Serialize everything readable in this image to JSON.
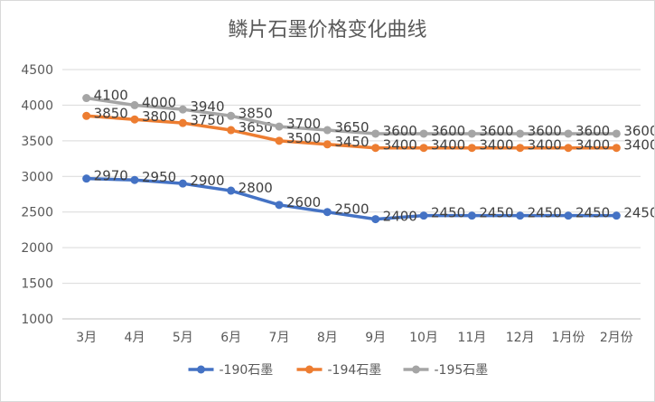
{
  "chart_data": {
    "type": "line",
    "title": "鳞片石墨价格变化曲线",
    "categories": [
      "3月",
      "4月",
      "5月",
      "6月",
      "7月",
      "8月",
      "9月",
      "10月",
      "11月",
      "12月",
      "1月份",
      "2月份"
    ],
    "ylim": [
      1000,
      4500
    ],
    "yticks": [
      1000,
      1500,
      2000,
      2500,
      3000,
      3500,
      4000,
      4500
    ],
    "grid": true,
    "legend_position": "bottom",
    "series": [
      {
        "name": "-190石墨",
        "color": "#4472C4",
        "values": [
          2970,
          2950,
          2900,
          2800,
          2600,
          2500,
          2400,
          2450,
          2450,
          2450,
          2450,
          2450
        ]
      },
      {
        "name": "-194石墨",
        "color": "#ED7D31",
        "values": [
          3850,
          3800,
          3750,
          3650,
          3500,
          3450,
          3400,
          3400,
          3400,
          3400,
          3400,
          3400
        ]
      },
      {
        "name": "-195石墨",
        "color": "#A5A5A5",
        "values": [
          4100,
          4000,
          3940,
          3850,
          3700,
          3650,
          3600,
          3600,
          3600,
          3600,
          3600,
          3600
        ]
      }
    ]
  }
}
